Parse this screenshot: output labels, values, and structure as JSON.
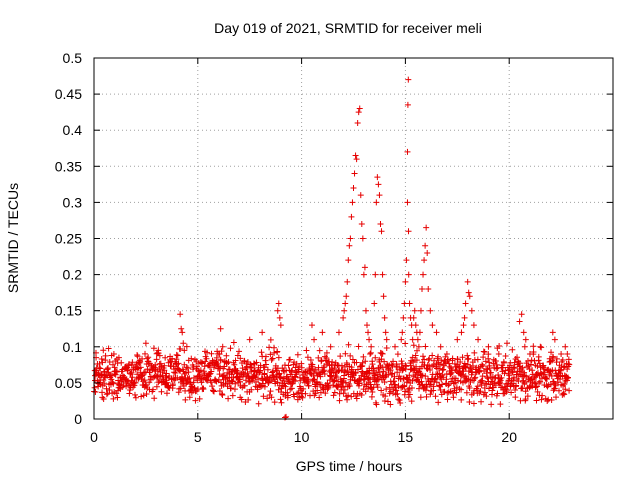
{
  "chart_data": {
    "type": "scatter",
    "title": "Day 019 of 2021, SRMTID for receiver meli",
    "xlabel": "GPS time / hours",
    "ylabel": "SRMTID / TECUs",
    "xlim": [
      0,
      25
    ],
    "ylim": [
      0,
      0.5
    ],
    "xticks": [
      0,
      5,
      10,
      15,
      20
    ],
    "xtick_labels": [
      "0",
      "5",
      "10",
      "15",
      "20"
    ],
    "yticks": [
      0,
      0.05,
      0.1,
      0.15,
      0.2,
      0.25,
      0.3,
      0.35,
      0.4,
      0.45,
      0.5
    ],
    "ytick_labels": [
      "0",
      "0.05",
      "0.1",
      "0.15",
      "0.2",
      "0.25",
      "0.3",
      "0.35",
      "0.4",
      "0.45",
      "0.5"
    ],
    "grid": true,
    "legend": "none",
    "marker": "plus",
    "color": "#e60000",
    "background_seed": 19,
    "background_points_per_hour": 70,
    "background_x_range": [
      0.0,
      22.9
    ],
    "background_y_level": 0.06,
    "background_y_spread": 0.028,
    "series": [
      {
        "name": "SRMTID",
        "x": [
          0.05,
          0.1,
          0.2,
          0.3,
          0.4,
          1.2,
          2.5,
          3.1,
          4.15,
          4.2,
          4.25,
          4.3,
          4.35,
          6.1,
          6.2,
          7.5,
          8.1,
          8.85,
          8.9,
          8.95,
          9.0,
          9.2,
          9.25,
          10.5,
          10.6,
          11.0,
          11.4,
          11.8,
          12.0,
          12.05,
          12.1,
          12.15,
          12.2,
          12.25,
          12.3,
          12.35,
          12.4,
          12.45,
          12.5,
          12.55,
          12.6,
          12.65,
          12.7,
          12.75,
          12.8,
          12.85,
          12.9,
          12.95,
          13.0,
          13.05,
          13.1,
          13.15,
          13.2,
          13.25,
          13.3,
          13.35,
          13.4,
          13.45,
          13.5,
          13.55,
          13.6,
          13.65,
          13.7,
          13.75,
          13.8,
          13.85,
          13.9,
          13.95,
          14.0,
          14.05,
          14.1,
          14.5,
          14.8,
          14.85,
          14.9,
          14.95,
          15.0,
          15.05,
          15.1,
          15.1,
          15.12,
          15.14,
          15.15,
          15.16,
          15.2,
          15.25,
          15.3,
          15.35,
          15.4,
          15.45,
          15.5,
          15.55,
          15.6,
          15.65,
          15.7,
          15.75,
          15.8,
          15.85,
          15.9,
          15.95,
          16.0,
          16.05,
          16.1,
          16.2,
          16.3,
          16.5,
          16.7,
          17.0,
          17.5,
          17.7,
          17.8,
          17.85,
          17.9,
          18.0,
          18.05,
          18.1,
          18.2,
          18.3,
          18.5,
          19.0,
          19.5,
          20.5,
          20.6,
          20.7,
          20.8,
          21.0,
          21.5,
          22.0,
          22.1,
          22.2,
          22.5,
          22.7,
          22.8
        ],
        "y": [
          0.06,
          0.085,
          0.045,
          0.07,
          0.03,
          0.085,
          0.105,
          0.095,
          0.145,
          0.125,
          0.12,
          0.105,
          0.095,
          0.125,
          0.1,
          0.11,
          0.12,
          0.15,
          0.16,
          0.14,
          0.13,
          0.002,
          0.003,
          0.13,
          0.11,
          0.12,
          0.1,
          0.12,
          0.14,
          0.15,
          0.16,
          0.17,
          0.19,
          0.22,
          0.24,
          0.25,
          0.28,
          0.3,
          0.32,
          0.34,
          0.365,
          0.36,
          0.41,
          0.425,
          0.43,
          0.31,
          0.27,
          0.25,
          0.2,
          0.21,
          0.15,
          0.13,
          0.12,
          0.11,
          0.09,
          0.1,
          0.08,
          0.07,
          0.16,
          0.2,
          0.3,
          0.335,
          0.325,
          0.31,
          0.27,
          0.26,
          0.2,
          0.17,
          0.14,
          0.12,
          0.11,
          0.1,
          0.11,
          0.12,
          0.14,
          0.16,
          0.19,
          0.22,
          0.3,
          0.37,
          0.435,
          0.47,
          0.26,
          0.2,
          0.16,
          0.14,
          0.13,
          0.11,
          0.14,
          0.15,
          0.13,
          0.12,
          0.11,
          0.1,
          0.12,
          0.15,
          0.18,
          0.2,
          0.22,
          0.24,
          0.265,
          0.23,
          0.18,
          0.15,
          0.13,
          0.12,
          0.1,
          0.09,
          0.11,
          0.12,
          0.13,
          0.14,
          0.16,
          0.19,
          0.175,
          0.17,
          0.15,
          0.13,
          0.11,
          0.1,
          0.09,
          0.135,
          0.145,
          0.12,
          0.11,
          0.09,
          0.1,
          0.08,
          0.12,
          0.11,
          0.09,
          0.1,
          0.09
        ]
      }
    ]
  }
}
